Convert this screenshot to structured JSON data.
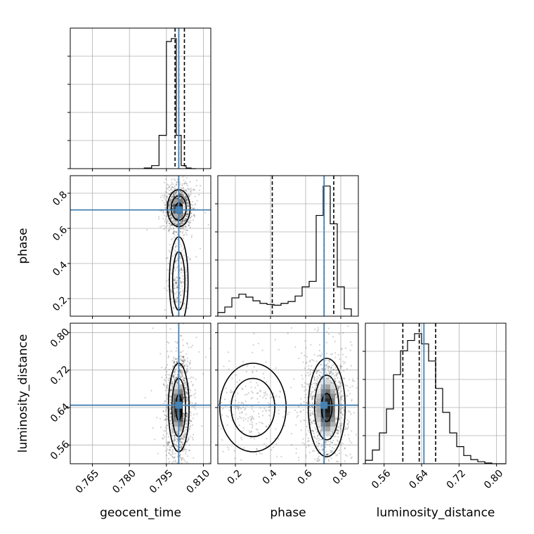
{
  "chart_data": {
    "type": "corner",
    "truth_color": "#4682b4",
    "hist_color": "#000000",
    "parameters": [
      {
        "key": "geocent_time",
        "label": "geocent_time",
        "range": [
          0.756,
          0.813
        ],
        "ticks": [
          "0.765",
          "0.780",
          "0.795",
          "0.810"
        ],
        "truth": 0.8,
        "quantiles": [
          0.7985,
          0.8,
          0.8023
        ]
      },
      {
        "key": "phase",
        "label": "phase",
        "range": [
          0.1,
          0.9
        ],
        "ticks": [
          "0.2",
          "0.4",
          "0.6",
          "0.8"
        ],
        "truth": 0.705,
        "quantiles": [
          0.41,
          0.705,
          0.76
        ]
      },
      {
        "key": "luminosity_distance",
        "label": "luminosity_distance",
        "range": [
          0.52,
          0.82
        ],
        "ticks": [
          "0.56",
          "0.64",
          "0.72",
          "0.80"
        ],
        "truth": 0.645,
        "quantiles": [
          0.6,
          0.635,
          0.67
        ]
      }
    ],
    "histograms": {
      "geocent_time": {
        "edges": [
          0.786,
          0.789,
          0.792,
          0.795,
          0.797,
          0.799,
          0.801,
          0.803,
          0.805,
          0.807
        ],
        "counts": [
          2,
          10,
          110,
          420,
          430,
          110,
          10,
          2,
          0
        ]
      },
      "phase": {
        "edges": [
          0.1,
          0.14,
          0.18,
          0.22,
          0.26,
          0.3,
          0.34,
          0.38,
          0.42,
          0.46,
          0.5,
          0.54,
          0.58,
          0.62,
          0.66,
          0.7,
          0.74,
          0.78,
          0.82,
          0.86
        ],
        "counts": [
          10,
          25,
          50,
          60,
          52,
          42,
          35,
          32,
          30,
          35,
          40,
          55,
          80,
          95,
          275,
          355,
          252,
          80,
          20
        ]
      },
      "luminosity_distance": {
        "edges": [
          0.52,
          0.535,
          0.55,
          0.565,
          0.58,
          0.595,
          0.61,
          0.625,
          0.64,
          0.655,
          0.67,
          0.685,
          0.7,
          0.715,
          0.73,
          0.745,
          0.76,
          0.775,
          0.79,
          0.805,
          0.82
        ],
        "counts": [
          5,
          20,
          45,
          80,
          130,
          165,
          180,
          190,
          175,
          150,
          110,
          75,
          45,
          25,
          12,
          6,
          3,
          1,
          0,
          0
        ]
      }
    },
    "clusters": {
      "geocent_time|phase": [
        {
          "cx": 0.8,
          "cy": 0.715,
          "sx": 0.0022,
          "sy": 0.05,
          "w": 0.82
        },
        {
          "cx": 0.8,
          "cy": 0.3,
          "sx": 0.0018,
          "sy": 0.12,
          "w": 0.18
        }
      ],
      "geocent_time|luminosity_distance": [
        {
          "cx": 0.8,
          "cy": 0.64,
          "sx": 0.002,
          "sy": 0.045,
          "w": 1
        }
      ],
      "phase|luminosity_distance": [
        {
          "cx": 0.72,
          "cy": 0.64,
          "sx": 0.05,
          "sy": 0.05,
          "w": 0.82
        },
        {
          "cx": 0.3,
          "cy": 0.64,
          "sx": 0.09,
          "sy": 0.045,
          "w": 0.18
        }
      ]
    }
  }
}
